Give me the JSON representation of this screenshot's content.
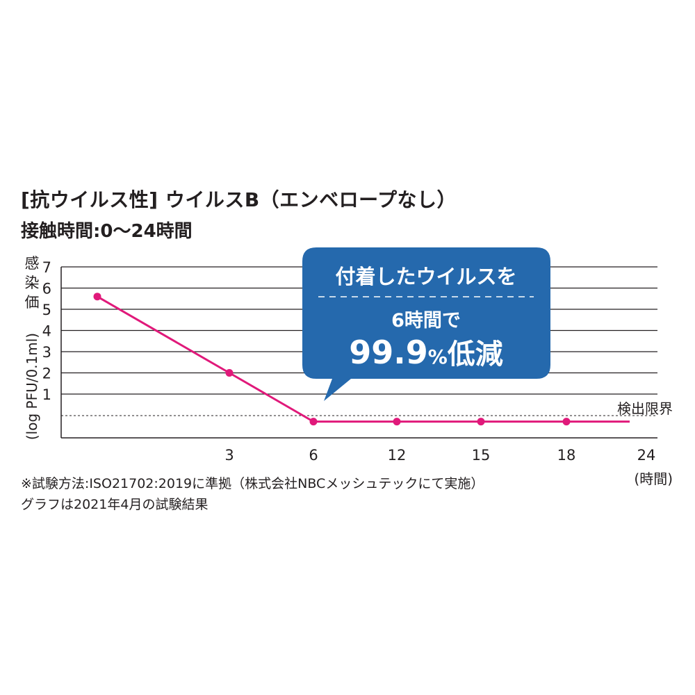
{
  "header": {
    "title_line1": "[抗ウイルス性] ウイルスB（エンベロープなし）",
    "title_line2": "接触時間:0〜24時間"
  },
  "colors": {
    "series": "#e0197a",
    "callout": "#2569ad",
    "text": "#231f20",
    "grid": "#231f20"
  },
  "chart_data": {
    "type": "line",
    "ylabel_main": "感染価",
    "ylabel_unit": "(log PFU/0.1ml)",
    "xunit": "(時間)",
    "yticks": [
      "1",
      "2",
      "3",
      "4",
      "5",
      "6",
      "7"
    ],
    "xticks": [
      "3",
      "6",
      "12",
      "15",
      "18",
      "24"
    ],
    "ylim": [
      0,
      7
    ],
    "detection_limit_label": "検出限界",
    "series": [
      {
        "x": [
          "0",
          "3",
          "6",
          "12",
          "15",
          "18"
        ],
        "y": [
          5.6,
          2.0,
          -0.3,
          -0.3,
          -0.3,
          -0.3
        ]
      }
    ],
    "callout": {
      "line1": "付着したウイルスを",
      "line2": "6時間で",
      "line3_value": "99.9",
      "line3_unit": "%",
      "line3_suffix": "低減"
    }
  },
  "footnotes": {
    "line1": "※試験方法:ISO21702:2019に準拠（株式会社NBCメッシュテックにて実施）",
    "line2": "グラフは2021年4月の試験結果"
  }
}
